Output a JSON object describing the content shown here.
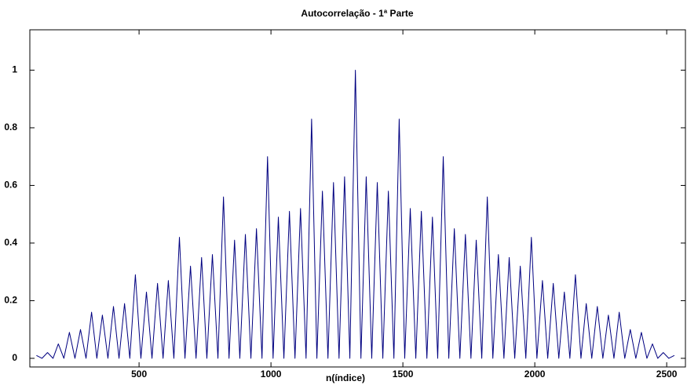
{
  "chart_data": {
    "type": "line",
    "title": "Autocorrelação - 1ª Parte",
    "x_label": "n(índice)",
    "xlim": [
      86,
      2571
    ],
    "xticks": [
      500,
      1000,
      1500,
      2000,
      2500
    ],
    "ylim": [
      -0.03,
      1.14
    ],
    "yticks": [
      0,
      0.2,
      0.4,
      0.6,
      0.8,
      1
    ],
    "grid": false,
    "series": [
      {
        "color": "#000080",
        "x": [
          111,
          132,
          153,
          174,
          194,
          215,
          236,
          257,
          278,
          299,
          320,
          340,
          361,
          382,
          403,
          424,
          445,
          465,
          486,
          507,
          528,
          549,
          570,
          591,
          611,
          632,
          653,
          674,
          695,
          716,
          737,
          757,
          778,
          799,
          820,
          841,
          862,
          882,
          903,
          924,
          945,
          966,
          987,
          1008,
          1028,
          1049,
          1070,
          1091,
          1112,
          1133,
          1154,
          1174,
          1195,
          1216,
          1237,
          1258,
          1279,
          1299,
          1320,
          1341,
          1361,
          1382,
          1403,
          1424,
          1445,
          1466,
          1486,
          1507,
          1528,
          1549,
          1570,
          1591,
          1612,
          1632,
          1653,
          1674,
          1695,
          1716,
          1737,
          1758,
          1778,
          1799,
          1820,
          1841,
          1862,
          1883,
          1903,
          1924,
          1945,
          1966,
          1987,
          2008,
          2029,
          2049,
          2070,
          2091,
          2112,
          2133,
          2154,
          2175,
          2195,
          2216,
          2237,
          2258,
          2279,
          2300,
          2320,
          2341,
          2362,
          2383,
          2404,
          2425,
          2446,
          2466,
          2487,
          2508,
          2529
        ],
        "values": [
          0.01,
          0,
          0.02,
          0,
          0.05,
          0,
          0.09,
          0,
          0.1,
          0,
          0.16,
          0,
          0.15,
          0,
          0.18,
          0,
          0.19,
          0,
          0.29,
          0,
          0.23,
          0,
          0.26,
          0,
          0.27,
          0,
          0.42,
          0,
          0.32,
          0,
          0.35,
          0,
          0.36,
          0,
          0.56,
          0,
          0.41,
          0,
          0.43,
          0,
          0.45,
          0,
          0.7,
          0,
          0.49,
          0,
          0.51,
          0,
          0.52,
          0,
          0.83,
          0,
          0.58,
          0,
          0.61,
          0,
          0.63,
          0,
          1,
          0,
          0.63,
          0,
          0.61,
          0,
          0.58,
          0,
          0.83,
          0,
          0.52,
          0,
          0.51,
          0,
          0.49,
          0,
          0.7,
          0,
          0.45,
          0,
          0.43,
          0,
          0.41,
          0,
          0.56,
          0,
          0.36,
          0,
          0.35,
          0,
          0.32,
          0,
          0.42,
          0,
          0.27,
          0,
          0.26,
          0,
          0.23,
          0,
          0.29,
          0,
          0.19,
          0,
          0.18,
          0,
          0.15,
          0,
          0.16,
          0,
          0.1,
          0,
          0.09,
          0,
          0.05,
          0,
          0.02,
          0,
          0.01
        ]
      }
    ]
  }
}
